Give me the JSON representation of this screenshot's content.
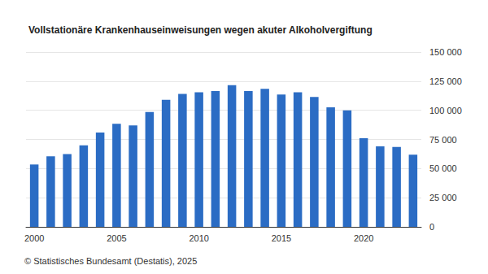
{
  "chart_data": {
    "type": "bar",
    "title": "Vollstationäre Krankenhauseinweisungen wegen akuter Alkoholvergiftung",
    "source": "© Statistisches Bundesamt (Destatis), 2025",
    "categories": [
      "2000",
      null,
      null,
      null,
      null,
      "2005",
      null,
      null,
      null,
      null,
      "2010",
      null,
      null,
      null,
      null,
      "2015",
      null,
      null,
      null,
      null,
      "2020",
      null,
      null,
      null
    ],
    "values": [
      53500,
      60500,
      62500,
      70000,
      81000,
      88500,
      87000,
      98500,
      109000,
      114000,
      115500,
      116500,
      121500,
      116500,
      118500,
      113500,
      115500,
      111500,
      102500,
      100000,
      76000,
      69000,
      68500,
      62000
    ],
    "color": "#2b6cc4",
    "ylim": [
      0,
      150000
    ],
    "yticks": [
      0,
      {
        "value": 25000,
        "label": "25 000"
      },
      {
        "value": 50000,
        "label": "50 000"
      },
      {
        "value": 75000,
        "label": "75 000"
      },
      {
        "value": 100000,
        "label": "100 000"
      },
      {
        "value": 125000,
        "label": "125 000"
      },
      {
        "value": 150000,
        "label": "150 000"
      }
    ],
    "grid": true
  }
}
